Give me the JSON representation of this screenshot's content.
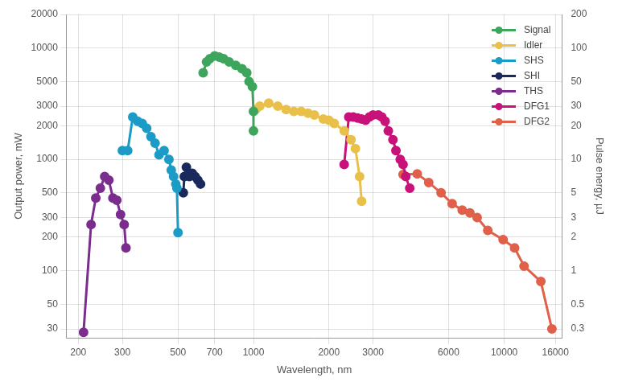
{
  "chart_data": {
    "type": "line",
    "x_label": "Wavelength, nm",
    "y_label": "Output power, mW",
    "y2_label": "Pulse energy, µJ",
    "log": true,
    "grid": true,
    "legend": "top-right",
    "marker": "circle",
    "xlim": [
      180,
      17000
    ],
    "xticks": [
      200,
      300,
      500,
      700,
      1000,
      2000,
      3000,
      6000,
      10000,
      16000
    ],
    "ylim": [
      25,
      20000
    ],
    "yticks": [
      30,
      50,
      100,
      200,
      300,
      500,
      1000,
      2000,
      3000,
      5000,
      10000,
      20000
    ],
    "y2lim": [
      0.25,
      200
    ],
    "y2ticks": [
      0.3,
      0.5,
      1,
      2,
      3,
      5,
      10,
      20,
      30,
      50,
      100,
      200
    ],
    "series": [
      {
        "name": "Signal",
        "color": "#3da55c",
        "x": [
          630,
          650,
          670,
          700,
          730,
          760,
          800,
          850,
          900,
          940,
          960,
          990,
          1000,
          1000
        ],
        "values": [
          6000,
          7500,
          8000,
          8500,
          8300,
          8000,
          7500,
          7000,
          6500,
          6000,
          5000,
          4500,
          2700,
          1800
        ]
      },
      {
        "name": "Idler",
        "color": "#e8c04a",
        "x": [
          1020,
          1060,
          1150,
          1250,
          1350,
          1450,
          1550,
          1650,
          1750,
          1900,
          2000,
          2100,
          2300,
          2450,
          2550,
          2650,
          2700
        ],
        "values": [
          2800,
          3000,
          3200,
          3000,
          2800,
          2700,
          2700,
          2600,
          2500,
          2300,
          2250,
          2100,
          1800,
          1500,
          1250,
          700,
          420
        ]
      },
      {
        "name": "SHS",
        "color": "#1c9bc7",
        "x": [
          300,
          315,
          330,
          345,
          360,
          375,
          390,
          405,
          420,
          440,
          460,
          470,
          480,
          490,
          495,
          500
        ],
        "values": [
          1200,
          1200,
          2400,
          2200,
          2100,
          1900,
          1600,
          1400,
          1100,
          1200,
          1000,
          800,
          700,
          600,
          550,
          220
        ]
      },
      {
        "name": "SHI",
        "color": "#1b2a5c",
        "x": [
          525,
          530,
          540,
          555,
          570,
          585,
          600,
          615
        ],
        "values": [
          500,
          700,
          850,
          700,
          750,
          700,
          650,
          600
        ]
      },
      {
        "name": "THS",
        "color": "#7b2d8e",
        "x": [
          210,
          225,
          235,
          245,
          255,
          265,
          275,
          285,
          295,
          305,
          310
        ],
        "values": [
          28,
          260,
          450,
          550,
          700,
          650,
          450,
          430,
          320,
          260,
          160
        ]
      },
      {
        "name": "DFG1",
        "color": "#c8127a",
        "x": [
          2300,
          2400,
          2500,
          2600,
          2700,
          2800,
          2900,
          3000,
          3150,
          3250,
          3350,
          3450,
          3600,
          3700,
          3850,
          3950,
          4050,
          4200
        ],
        "values": [
          900,
          2400,
          2400,
          2350,
          2300,
          2250,
          2400,
          2500,
          2500,
          2400,
          2200,
          1800,
          1500,
          1200,
          1000,
          900,
          700,
          550
        ]
      },
      {
        "name": "DFG2",
        "color": "#e0604a",
        "x": [
          3950,
          4500,
          5000,
          5600,
          6200,
          6800,
          7300,
          7800,
          8600,
          9900,
          11000,
          12000,
          14000,
          15500
        ],
        "values": [
          730,
          740,
          620,
          500,
          400,
          350,
          330,
          300,
          230,
          190,
          160,
          110,
          80,
          30
        ]
      }
    ]
  }
}
